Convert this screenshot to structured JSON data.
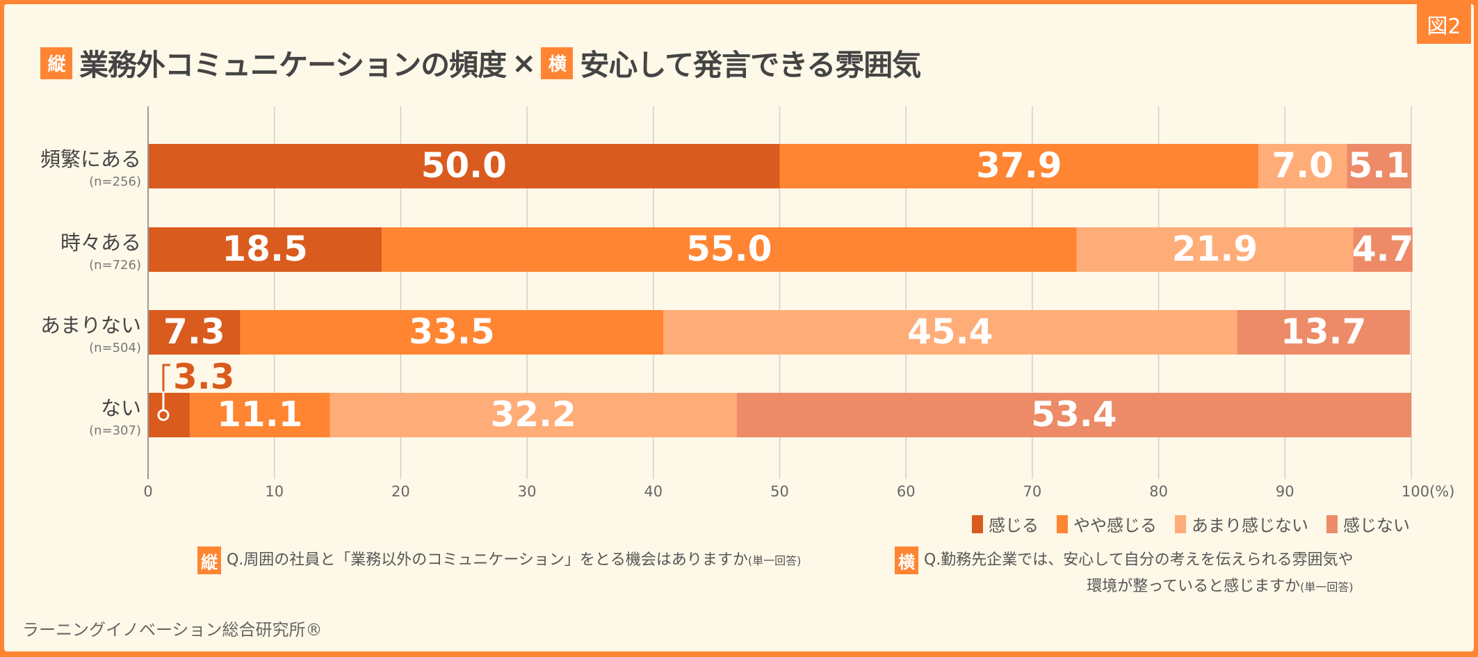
{
  "figure_label": "図2",
  "title": {
    "tag_vertical": "縦",
    "part1": "業務外コミュニケーションの頻度",
    "cross": "×",
    "tag_horizontal": "横",
    "part2": "安心して発言できる雰囲気"
  },
  "chart_data": {
    "type": "bar",
    "orientation": "horizontal",
    "stacked": true,
    "xlim": [
      0,
      100
    ],
    "x_ticks": [
      "0",
      "10",
      "20",
      "30",
      "40",
      "50",
      "60",
      "70",
      "80",
      "90",
      "100(%)"
    ],
    "grid": true,
    "legend_position": "bottom-right",
    "categories": [
      {
        "label": "頻繁にある",
        "n": "(n=256)"
      },
      {
        "label": "時々ある",
        "n": "(n=726)"
      },
      {
        "label": "あまりない",
        "n": "(n=504)"
      },
      {
        "label": "ない",
        "n": "(n=307)"
      }
    ],
    "series": [
      {
        "name": "感じる",
        "color": "#D95B1E",
        "values": [
          50.0,
          18.5,
          7.3,
          3.3
        ]
      },
      {
        "name": "やや感じる",
        "color": "#FF8533",
        "values": [
          37.9,
          55.0,
          33.5,
          11.1
        ]
      },
      {
        "name": "あまり感じない",
        "color": "#FFAD78",
        "values": [
          7.0,
          21.9,
          45.4,
          32.2
        ]
      },
      {
        "name": "感じない",
        "color": "#ED8B68",
        "values": [
          5.1,
          4.7,
          13.7,
          53.4
        ]
      }
    ],
    "data_labels": [
      [
        "50.0",
        "37.9",
        "7.0",
        "5.1"
      ],
      [
        "18.5",
        "55.0",
        "21.9",
        "4.7"
      ],
      [
        "7.3",
        "33.5",
        "45.4",
        "13.7"
      ],
      [
        "3.3",
        "11.1",
        "32.2",
        "53.4"
      ]
    ]
  },
  "notes": {
    "vertical_tag": "縦",
    "vertical": "Q.周囲の社員と「業務以外のコミュニケーション」をとる機会はありますか",
    "vertical_suffix": "(単一回答)",
    "horizontal_tag": "横",
    "horizontal_line1": "Q.勤務先企業では、安心して自分の考えを伝えられる雰囲気や",
    "horizontal_line2": "環境が整っていると感じますか",
    "horizontal_suffix": "(単一回答)"
  },
  "credit": "ラーニングイノベーション総合研究所®",
  "colors": {
    "accent": "#FF8533",
    "background": "#FEF8E8",
    "text": "#444444"
  }
}
